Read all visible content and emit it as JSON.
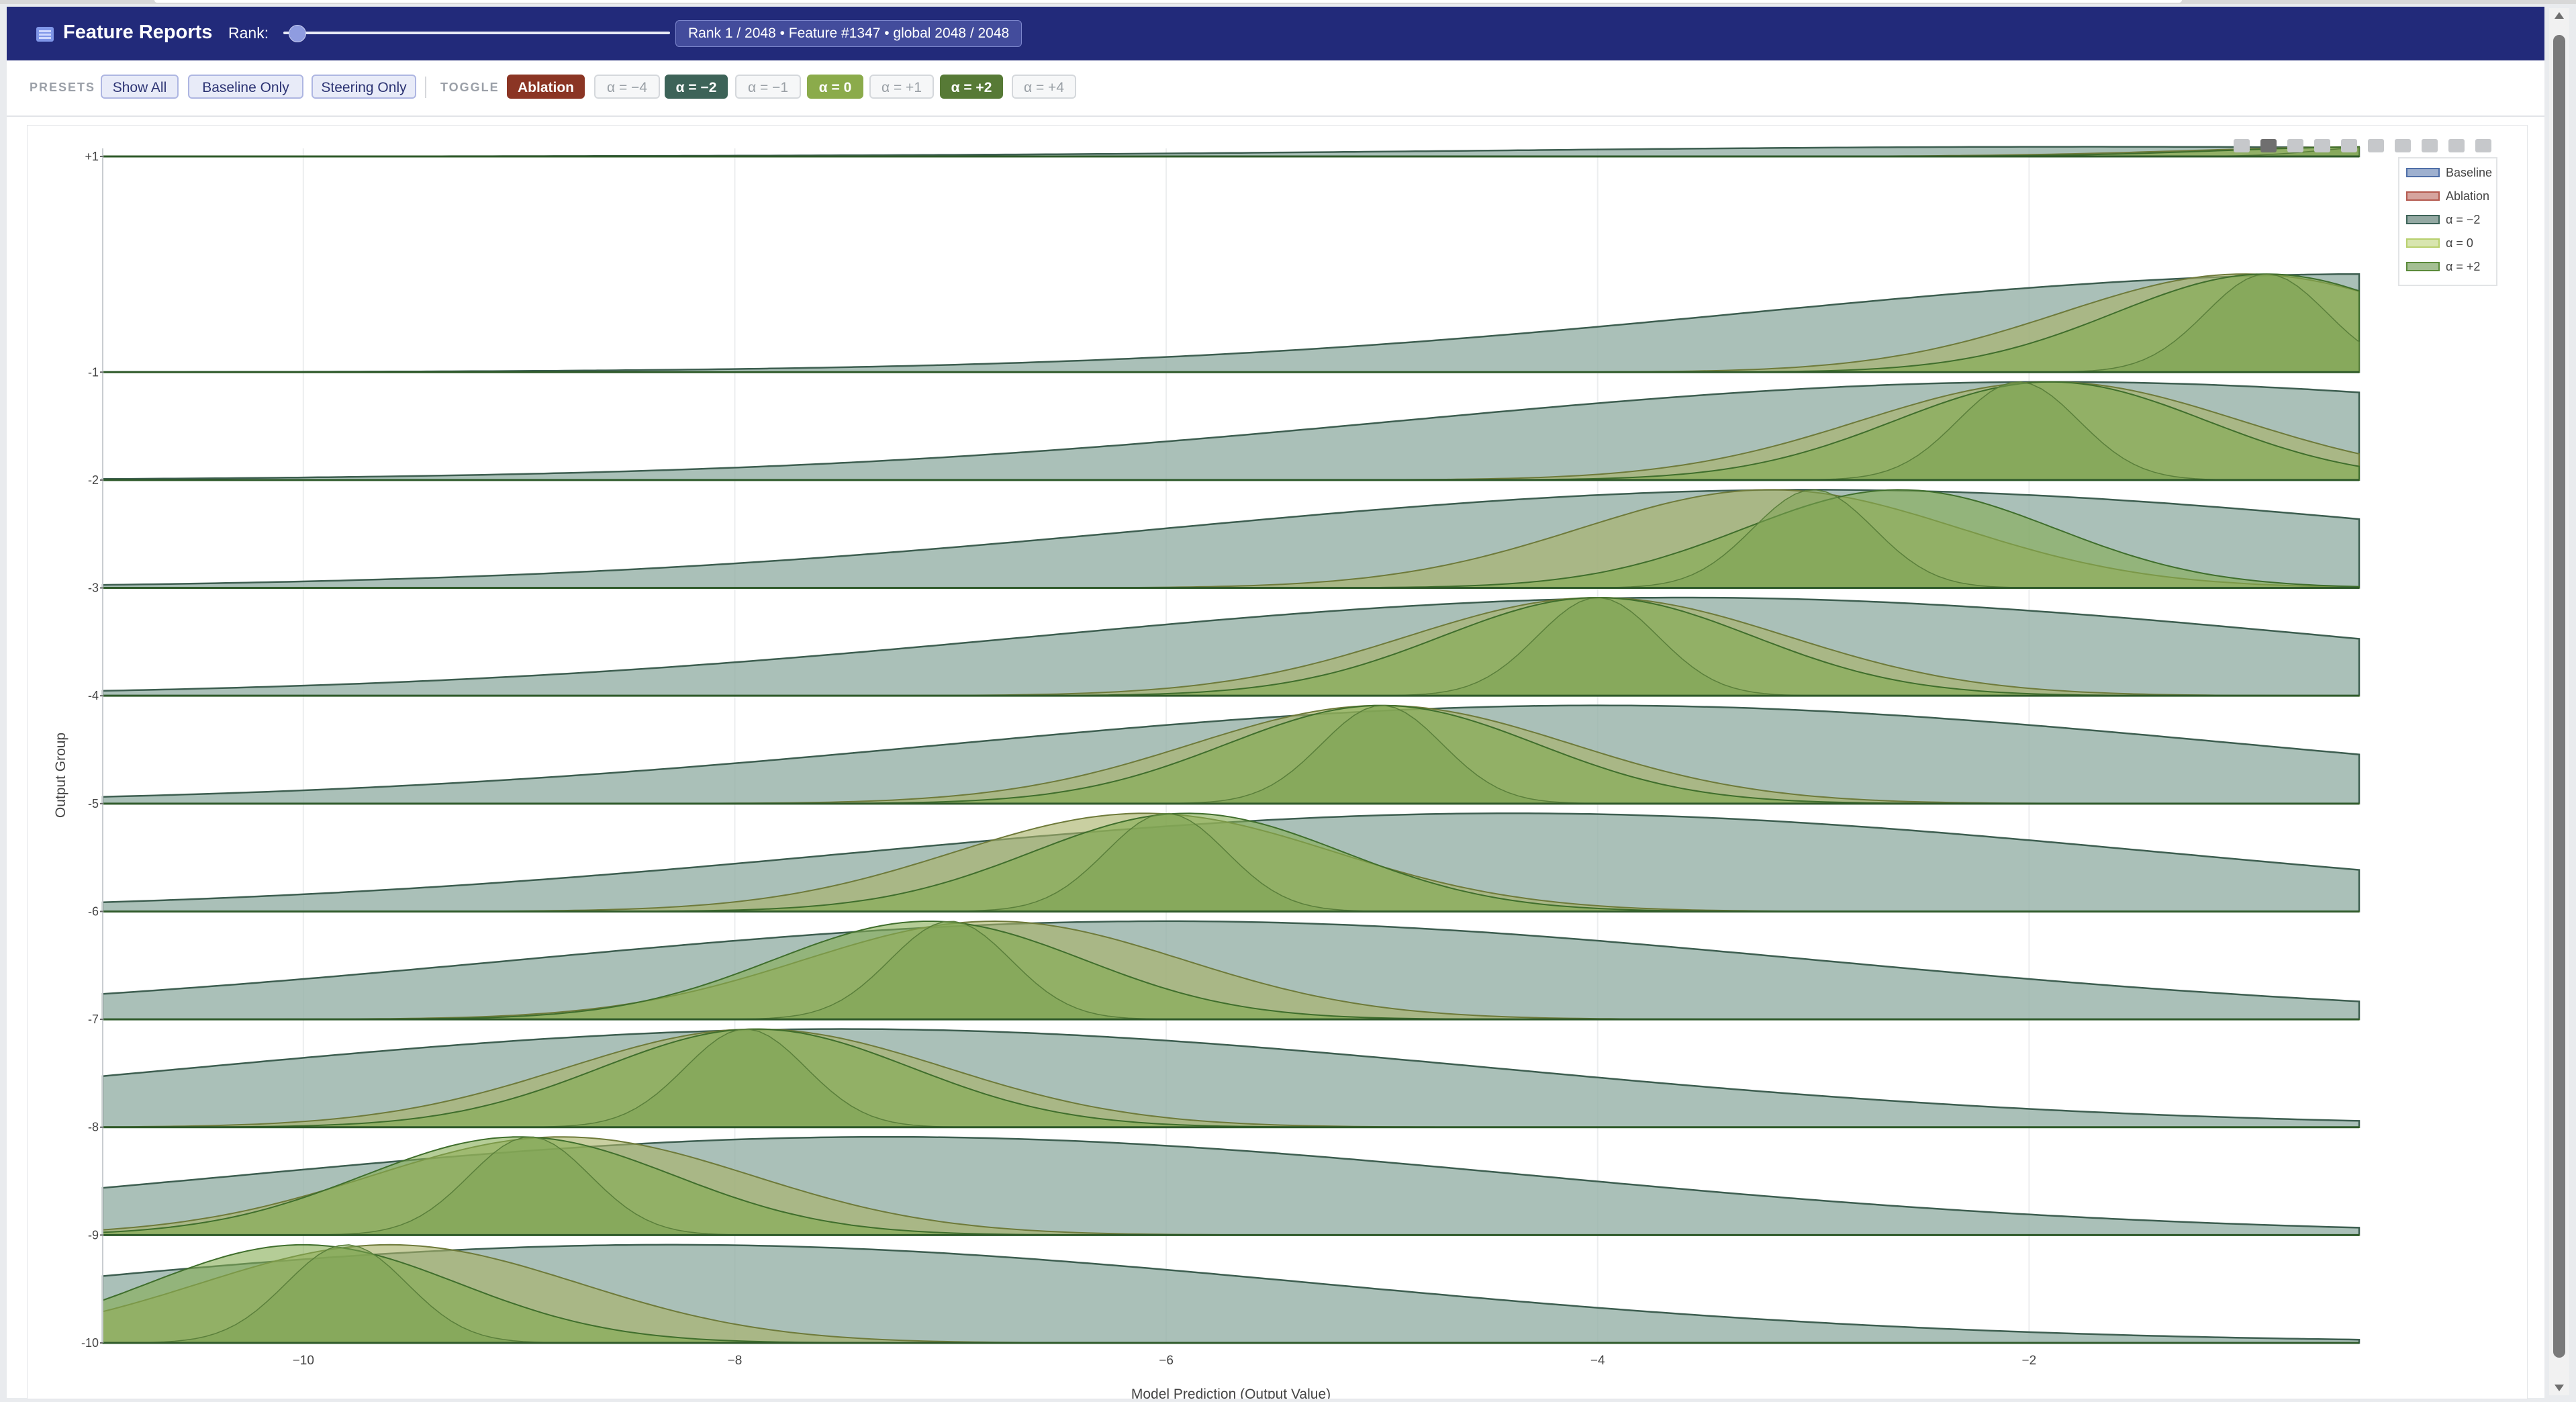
{
  "app": {
    "title": "Feature Reports"
  },
  "header": {
    "rank_label": "Rank:",
    "rank_slider_fraction": 0.0,
    "rank_info": "Rank 1 / 2048 • Feature #1347 • global 2048 / 2048"
  },
  "toolbar": {
    "presets_label": "PRESETS",
    "presets": [
      "Show All",
      "Baseline Only",
      "Steering Only"
    ],
    "toggle_label": "TOGGLE",
    "toggles": [
      {
        "label": "Ablation",
        "active": true,
        "color": "#8b3524"
      },
      {
        "label": "α = −4",
        "active": false,
        "color": ""
      },
      {
        "label": "α = −2",
        "active": true,
        "color": "#3d6358"
      },
      {
        "label": "α = −1",
        "active": false,
        "color": ""
      },
      {
        "label": "α = 0",
        "active": true,
        "color": "#8bab4b"
      },
      {
        "label": "α = +1",
        "active": false,
        "color": ""
      },
      {
        "label": "α = +2",
        "active": true,
        "color": "#577a36"
      },
      {
        "label": "α = +4",
        "active": false,
        "color": ""
      }
    ]
  },
  "modebar_icons": [
    "camera-icon",
    "zoom-icon",
    "pan-icon",
    "zoom-in-icon",
    "zoom-out-icon",
    "autoscale-icon",
    "reset-axes-icon",
    "spike-lines-icon",
    "hover-closest-icon",
    "hover-compare-icon"
  ],
  "chart_data": {
    "type": "area",
    "subtype": "ridgeline",
    "title": "",
    "xlabel": "Model Prediction (Output Value)",
    "ylabel": "Output Group",
    "xlim": [
      -10.93,
      -0.47
    ],
    "ylim": [
      -10,
      1
    ],
    "x_ticks": [
      -10,
      -8,
      -6,
      -4,
      -2
    ],
    "x_tick_labels": [
      "−10",
      "−8",
      "−6",
      "−4",
      "−2"
    ],
    "y_tick_labels": [
      "+1",
      "-1",
      "-2",
      "-3",
      "-4",
      "-5",
      "-6",
      "-7",
      "-8",
      "-9",
      "-10"
    ],
    "grid": true,
    "legend_position": "top-right",
    "legend": [
      {
        "name": "Baseline",
        "color": "#4f6fa8"
      },
      {
        "name": "Ablation",
        "color": "#b45a4f"
      },
      {
        "name": "α = −2",
        "color": "#3d6358"
      },
      {
        "name": "α =  0",
        "color": "#b8d06e"
      },
      {
        "name": "α = +2",
        "color": "#5a8a3a"
      }
    ],
    "groups": [
      {
        "label": "+1",
        "wide_mu": -1.7,
        "wide_sd": 2.8,
        "olive_mu": -0.35,
        "olive_sd": 0.9,
        "mid_mu": -0.35,
        "mid_sd": 0.75,
        "narrow_mu": -0.35,
        "narrow_sd": 0.3,
        "scale": 0.09
      },
      {
        "label": "-1",
        "wide_mu": -0.4,
        "wide_sd": 2.9,
        "olive_mu": -1.0,
        "olive_sd": 0.85,
        "mid_mu": -0.9,
        "mid_sd": 0.7,
        "narrow_mu": -0.9,
        "narrow_sd": 0.28,
        "scale": 0.91
      },
      {
        "label": "-2",
        "wide_mu": -1.9,
        "wide_sd": 3.0,
        "olive_mu": -1.9,
        "olive_sd": 0.88,
        "mid_mu": -1.9,
        "mid_sd": 0.72,
        "narrow_mu": -2.05,
        "narrow_sd": 0.28,
        "scale": 0.91
      },
      {
        "label": "-3",
        "wide_mu": -3.0,
        "wide_sd": 3.0,
        "olive_mu": -3.2,
        "olive_sd": 0.88,
        "mid_mu": -2.6,
        "mid_sd": 0.72,
        "narrow_mu": -3.0,
        "narrow_sd": 0.28,
        "scale": 0.91
      },
      {
        "label": "-4",
        "wide_mu": -3.6,
        "wide_sd": 3.0,
        "olive_mu": -4.0,
        "olive_sd": 0.88,
        "mid_mu": -4.0,
        "mid_sd": 0.72,
        "narrow_mu": -4.0,
        "narrow_sd": 0.28,
        "scale": 0.91
      },
      {
        "label": "-5",
        "wide_mu": -4.0,
        "wide_sd": 3.0,
        "olive_mu": -5.0,
        "olive_sd": 0.88,
        "mid_mu": -5.0,
        "mid_sd": 0.72,
        "narrow_mu": -5.0,
        "narrow_sd": 0.28,
        "scale": 0.91
      },
      {
        "label": "-6",
        "wide_mu": -4.4,
        "wide_sd": 3.0,
        "olive_mu": -6.1,
        "olive_sd": 0.88,
        "mid_mu": -5.9,
        "mid_sd": 0.72,
        "narrow_mu": -6.0,
        "narrow_sd": 0.28,
        "scale": 0.91
      },
      {
        "label": "-7",
        "wide_mu": -6.0,
        "wide_sd": 3.0,
        "olive_mu": -6.8,
        "olive_sd": 0.88,
        "mid_mu": -7.1,
        "mid_sd": 0.72,
        "narrow_mu": -7.0,
        "narrow_sd": 0.28,
        "scale": 0.91
      },
      {
        "label": "-8",
        "wide_mu": -7.5,
        "wide_sd": 3.0,
        "olive_mu": -7.9,
        "olive_sd": 0.88,
        "mid_mu": -7.9,
        "mid_sd": 0.72,
        "narrow_mu": -7.95,
        "narrow_sd": 0.28,
        "scale": 0.91
      },
      {
        "label": "-9",
        "wide_mu": -7.3,
        "wide_sd": 3.0,
        "olive_mu": -8.8,
        "olive_sd": 0.88,
        "mid_mu": -9.0,
        "mid_sd": 0.72,
        "narrow_mu": -8.95,
        "narrow_sd": 0.28,
        "scale": 0.91
      },
      {
        "label": "-10",
        "wide_mu": -8.3,
        "wide_sd": 3.0,
        "olive_mu": -9.6,
        "olive_sd": 0.88,
        "mid_mu": -10.0,
        "mid_sd": 0.72,
        "narrow_mu": -9.8,
        "narrow_sd": 0.28,
        "scale": 0.91
      }
    ]
  }
}
